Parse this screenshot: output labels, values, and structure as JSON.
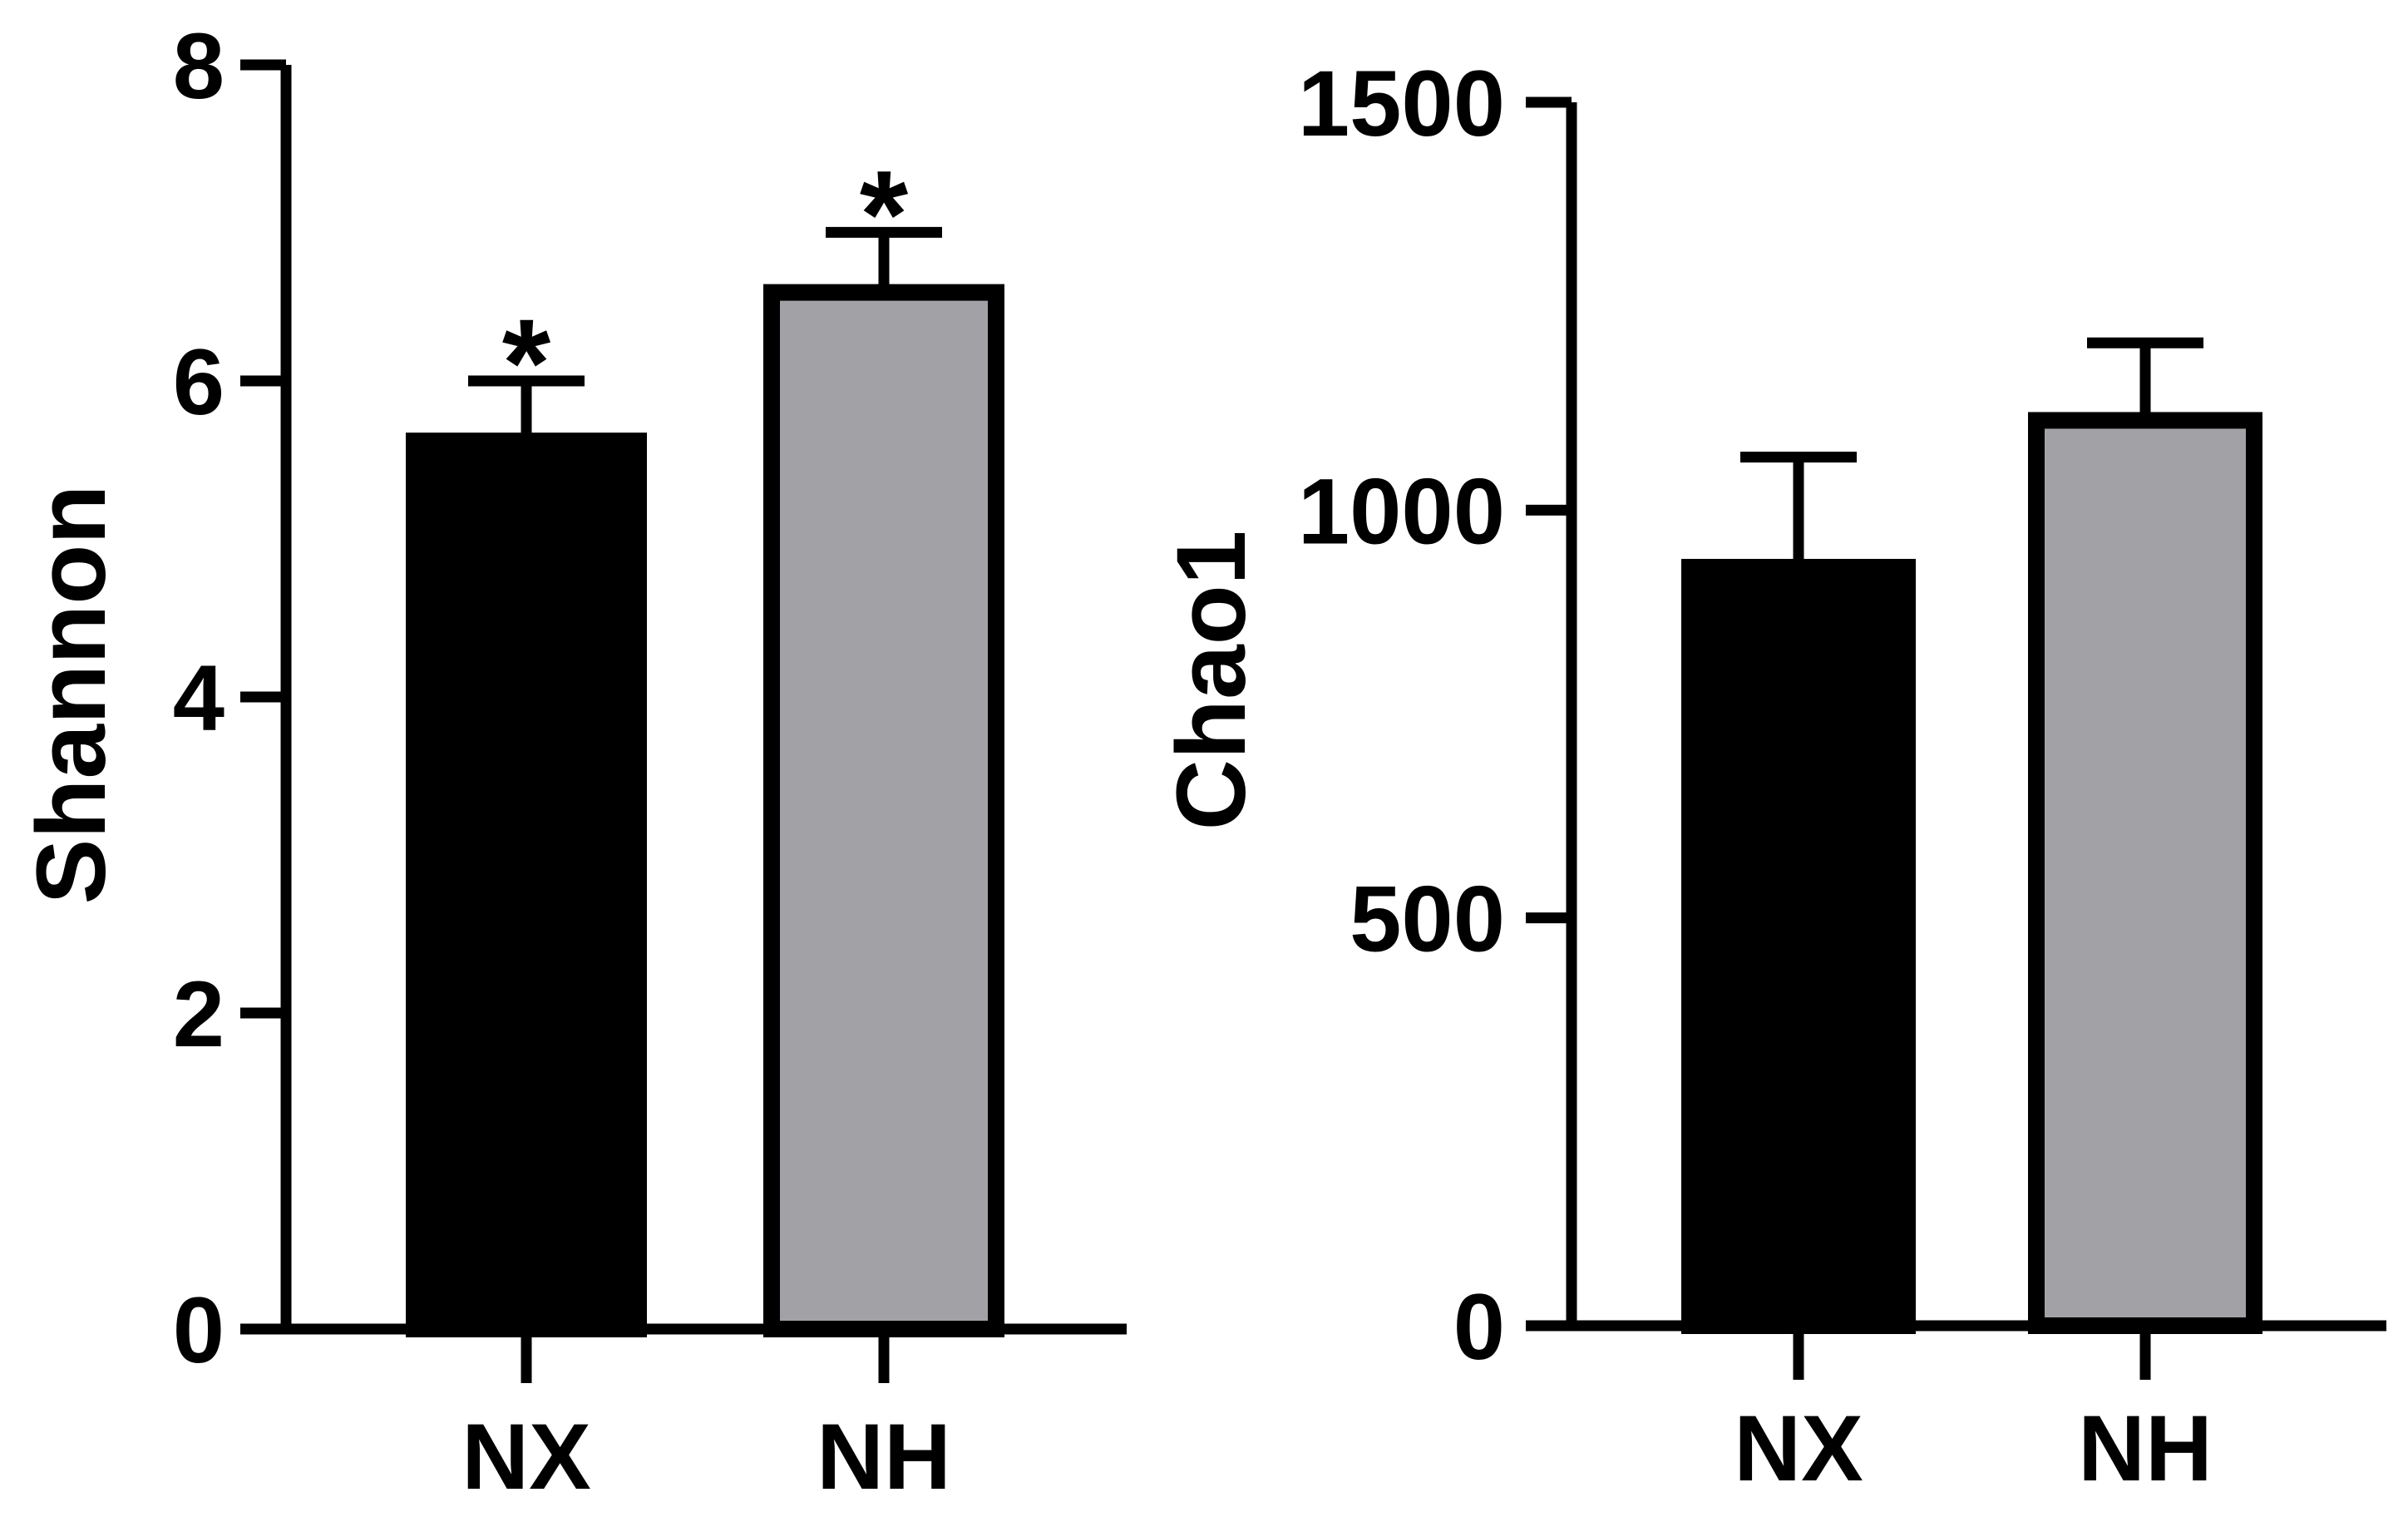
{
  "chart_data": [
    {
      "type": "bar",
      "ylabel": "Shannon",
      "xlabel": "",
      "categories": [
        "NX",
        "NH"
      ],
      "values": [
        5.62,
        6.56
      ],
      "error": [
        0.38,
        0.38
      ],
      "significance": [
        "*",
        "*"
      ],
      "ylim": [
        0,
        8
      ],
      "yticks": [
        "0",
        "2",
        "4",
        "6",
        "8"
      ],
      "bar_colors": [
        "#000000",
        "#a2a1a6"
      ],
      "grid": false,
      "legend": "none"
    },
    {
      "type": "bar",
      "ylabel": "Chao1",
      "xlabel": "",
      "categories": [
        "NX",
        "NH"
      ],
      "values": [
        930,
        1110
      ],
      "error": [
        135,
        95
      ],
      "significance": [
        "",
        ""
      ],
      "ylim": [
        0,
        1500
      ],
      "yticks": [
        "0",
        "500",
        "1000",
        "1500"
      ],
      "bar_colors": [
        "#000000",
        "#a2a1a6"
      ],
      "grid": false,
      "legend": "none"
    }
  ]
}
